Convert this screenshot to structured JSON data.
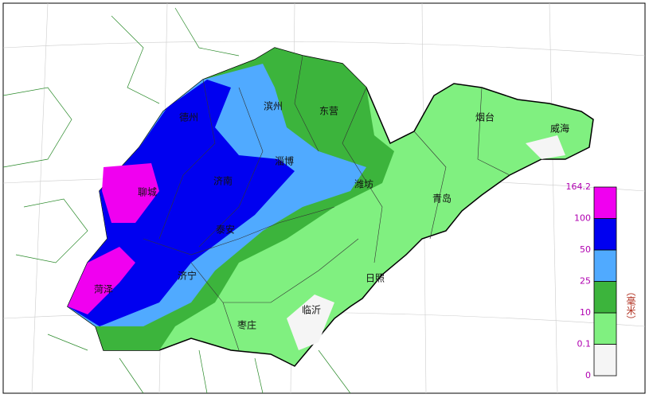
{
  "map": {
    "cities": [
      "德州",
      "滨州",
      "东营",
      "烟台",
      "威海",
      "淄博",
      "济南",
      "聊城",
      "潍坊",
      "青岛",
      "泰安",
      "济宁",
      "日照",
      "菏泽",
      "临沂",
      "枣庄"
    ],
    "legend": {
      "ticks": [
        "0",
        "0.1",
        "10",
        "25",
        "50",
        "100",
        "164.2"
      ],
      "colors": [
        "#f5f5f5",
        "#80f080",
        "#3cb43c",
        "#50aaff",
        "#0000f0",
        "#f000f0"
      ],
      "unit": "（毫米）"
    }
  }
}
